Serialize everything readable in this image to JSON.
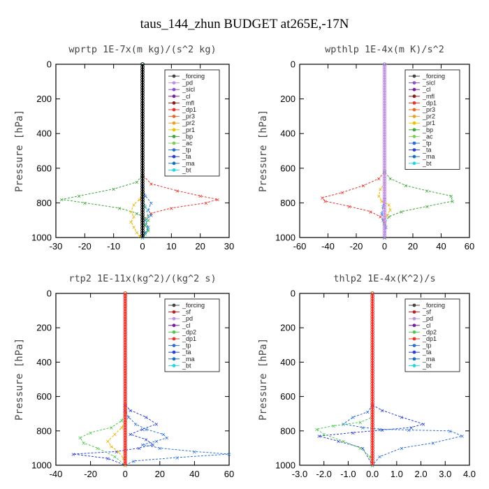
{
  "suptitle": "taus_144_zhun  BUDGET at265E,-17N",
  "chart_data": [
    {
      "type": "line",
      "title": "wprtp  1E-7x(m kg)/(s^2 kg)",
      "ylabel": "Pressure [hPa]",
      "xlim": [
        -30,
        30
      ],
      "xticks": [
        "-30",
        "-20",
        "-10",
        "0",
        "10",
        "20",
        "30"
      ],
      "ylim": [
        1000,
        0
      ],
      "yticks": [
        "0",
        "200",
        "400",
        "600",
        "800",
        "1000"
      ],
      "grid": false,
      "legend_position": "top-right",
      "legend": [
        "_forcing",
        "_pd",
        "_sicl",
        "_cl",
        "_mfl",
        "_dp1",
        "_pr3",
        "_pr2",
        "_pr1",
        "_bp",
        "_ac",
        "_tp",
        "_ta",
        "_ma",
        "_bt"
      ],
      "series": [
        {
          "name": "_forcing",
          "color": "#000000",
          "x": [
            0,
            0,
            0,
            0,
            0
          ],
          "y": [
            0,
            250,
            500,
            750,
            1000
          ]
        },
        {
          "name": "_dp1",
          "color": "#e8322a",
          "x": [
            0,
            0,
            3,
            12,
            20,
            26,
            22,
            10,
            3,
            0,
            0
          ],
          "y": [
            0,
            640,
            690,
            730,
            760,
            780,
            800,
            830,
            860,
            900,
            1000
          ]
        },
        {
          "name": "_bp",
          "color": "#3aa83a",
          "x": [
            0,
            0,
            -2,
            -10,
            -22,
            -28,
            -20,
            -8,
            -2,
            0,
            2,
            1,
            2,
            0
          ],
          "y": [
            0,
            640,
            680,
            720,
            760,
            780,
            800,
            830,
            860,
            880,
            900,
            930,
            960,
            1000
          ]
        },
        {
          "name": "_pr1",
          "color": "#e8b400",
          "x": [
            0,
            0,
            -1,
            -3,
            -4,
            -3,
            -4,
            -3,
            -2,
            -1,
            0
          ],
          "y": [
            0,
            740,
            780,
            810,
            850,
            880,
            910,
            940,
            970,
            990,
            1000
          ]
        },
        {
          "name": "_tp",
          "color": "#2b6fd6",
          "x": [
            0,
            0,
            1,
            3,
            2,
            3,
            1,
            2,
            1,
            0
          ],
          "y": [
            0,
            700,
            760,
            800,
            840,
            870,
            900,
            940,
            970,
            1000
          ]
        },
        {
          "name": "_ac",
          "color": "#2fb8a6",
          "x": [
            0,
            0,
            1,
            2,
            1,
            2,
            1,
            0
          ],
          "y": [
            0,
            760,
            820,
            880,
            920,
            950,
            980,
            1000
          ]
        }
      ]
    },
    {
      "type": "line",
      "title": "wpthlp  1E-4x(m K)/s^2",
      "ylabel": "Pressure [hPa]",
      "xlim": [
        -60,
        60
      ],
      "xticks": [
        "-60",
        "-40",
        "-20",
        "0",
        "20",
        "40",
        "60"
      ],
      "ylim": [
        1000,
        0
      ],
      "yticks": [
        "0",
        "200",
        "400",
        "600",
        "800",
        "1000"
      ],
      "grid": false,
      "legend_position": "top-right",
      "legend": [
        "_forcing",
        "_sicl",
        "_cl",
        "_mfl",
        "_dp1",
        "_pr3",
        "_pr2",
        "_pr1",
        "_bp",
        "_ac",
        "_tp",
        "_ta",
        "_ma",
        "_bt"
      ],
      "series": [
        {
          "name": "_forcing",
          "color": "#c090e0",
          "x": [
            0,
            0,
            0,
            0,
            0
          ],
          "y": [
            0,
            250,
            500,
            750,
            1000
          ]
        },
        {
          "name": "_dp1",
          "color": "#e8322a",
          "x": [
            0,
            0,
            -4,
            -15,
            -30,
            -44,
            -42,
            -25,
            -10,
            -3,
            0,
            0
          ],
          "y": [
            0,
            620,
            660,
            700,
            740,
            770,
            790,
            820,
            850,
            880,
            920,
            1000
          ]
        },
        {
          "name": "_bp",
          "color": "#3aa83a",
          "x": [
            0,
            0,
            4,
            15,
            30,
            47,
            48,
            30,
            12,
            3,
            0,
            0
          ],
          "y": [
            0,
            620,
            660,
            700,
            730,
            760,
            790,
            820,
            850,
            880,
            920,
            1000
          ]
        },
        {
          "name": "_pr1",
          "color": "#e8b400",
          "x": [
            0,
            0,
            -3,
            -4,
            -2,
            3,
            4,
            2,
            0,
            0
          ],
          "y": [
            0,
            690,
            720,
            760,
            790,
            810,
            840,
            870,
            900,
            1000
          ]
        },
        {
          "name": "_tp",
          "color": "#2b6fd6",
          "x": [
            0,
            0,
            -1,
            -2,
            -1,
            1,
            0
          ],
          "y": [
            0,
            780,
            820,
            860,
            900,
            940,
            1000
          ]
        }
      ]
    },
    {
      "type": "line",
      "title": "rtp2  1E-11x(kg^2)/(kg^2 s)",
      "ylabel": "Pressure [hPa]",
      "xlim": [
        -40,
        60
      ],
      "xticks": [
        "-40",
        "-20",
        "0",
        "20",
        "40",
        "60"
      ],
      "ylim": [
        1000,
        0
      ],
      "yticks": [
        "0",
        "200",
        "400",
        "600",
        "800",
        "1000"
      ],
      "grid": false,
      "legend_position": "top-right",
      "legend": [
        "_forcing",
        "_sf",
        "_pd",
        "_cl",
        "_dp2",
        "_dp1",
        "_tp",
        "_ta",
        "_ma",
        "_bt"
      ],
      "series": [
        {
          "name": "_forcing",
          "color": "#e8322a",
          "x": [
            0,
            0,
            0,
            0,
            0
          ],
          "y": [
            0,
            250,
            500,
            750,
            1000
          ]
        },
        {
          "name": "_tp",
          "color": "#2b3fd6",
          "x": [
            0,
            0,
            3,
            12,
            18,
            10,
            3,
            12,
            16,
            8,
            -5,
            -30,
            -10,
            0
          ],
          "y": [
            0,
            650,
            680,
            720,
            760,
            790,
            820,
            850,
            880,
            900,
            920,
            935,
            960,
            1000
          ]
        },
        {
          "name": "_ta",
          "color": "#2b6fd6",
          "x": [
            0,
            0,
            2,
            6,
            12,
            22,
            24,
            18,
            10,
            20,
            40,
            60,
            30,
            5,
            0
          ],
          "y": [
            0,
            680,
            720,
            760,
            790,
            820,
            840,
            860,
            880,
            900,
            920,
            935,
            955,
            975,
            1000
          ]
        },
        {
          "name": "_dp2",
          "color": "#4fc84f",
          "x": [
            0,
            0,
            -2,
            -8,
            -20,
            -26,
            -24,
            -16,
            -6,
            0
          ],
          "y": [
            0,
            700,
            740,
            780,
            810,
            840,
            870,
            900,
            950,
            1000
          ]
        },
        {
          "name": "_cl",
          "color": "#e8b400",
          "x": [
            0,
            0,
            -2,
            -6,
            -10,
            -8,
            -4,
            -1,
            0
          ],
          "y": [
            0,
            750,
            780,
            820,
            860,
            890,
            920,
            960,
            1000
          ]
        }
      ]
    },
    {
      "type": "line",
      "title": "thlp2  1E-4x(K^2)/s",
      "ylabel": "Pressure [hPa]",
      "xlim": [
        -3.0,
        4.0
      ],
      "xticks": [
        "-3.0",
        "-2.0",
        "-1.0",
        "0.0",
        "1.0",
        "2.0",
        "3.0",
        "4.0"
      ],
      "ylim": [
        1000,
        0
      ],
      "yticks": [
        "0",
        "200",
        "400",
        "600",
        "800",
        "1000"
      ],
      "grid": false,
      "legend_position": "top-right",
      "legend": [
        "_forcing",
        "_sf",
        "_pd",
        "_cl",
        "_dp2",
        "_dp1",
        "_tp",
        "_ta",
        "_ma",
        "_bt"
      ],
      "series": [
        {
          "name": "_forcing",
          "color": "#e8322a",
          "x": [
            0,
            0,
            0,
            0,
            0
          ],
          "y": [
            0,
            250,
            500,
            750,
            1000
          ]
        },
        {
          "name": "_tp",
          "color": "#2b3fd6",
          "x": [
            0,
            0,
            0.4,
            1.2,
            2.1,
            1.6,
            0.4,
            -0.8,
            -2.2,
            -1.4,
            -0.4,
            0
          ],
          "y": [
            0,
            650,
            680,
            720,
            760,
            780,
            795,
            810,
            830,
            860,
            900,
            1000
          ]
        },
        {
          "name": "_ta",
          "color": "#2b6fd6",
          "x": [
            0,
            0,
            -0.2,
            -0.8,
            -1.2,
            -0.4,
            0.3,
            1.5,
            3.2,
            3.7,
            2.5,
            1.2,
            0.3,
            0
          ],
          "y": [
            0,
            650,
            690,
            720,
            760,
            780,
            790,
            795,
            800,
            830,
            870,
            900,
            950,
            1000
          ]
        },
        {
          "name": "_dp2",
          "color": "#4fc84f",
          "x": [
            0,
            0,
            -0.5,
            -1.6,
            -2.3,
            -2.0,
            -1.2,
            -0.5,
            -0.1,
            0
          ],
          "y": [
            0,
            720,
            750,
            770,
            790,
            820,
            860,
            900,
            950,
            1000
          ]
        }
      ]
    }
  ]
}
